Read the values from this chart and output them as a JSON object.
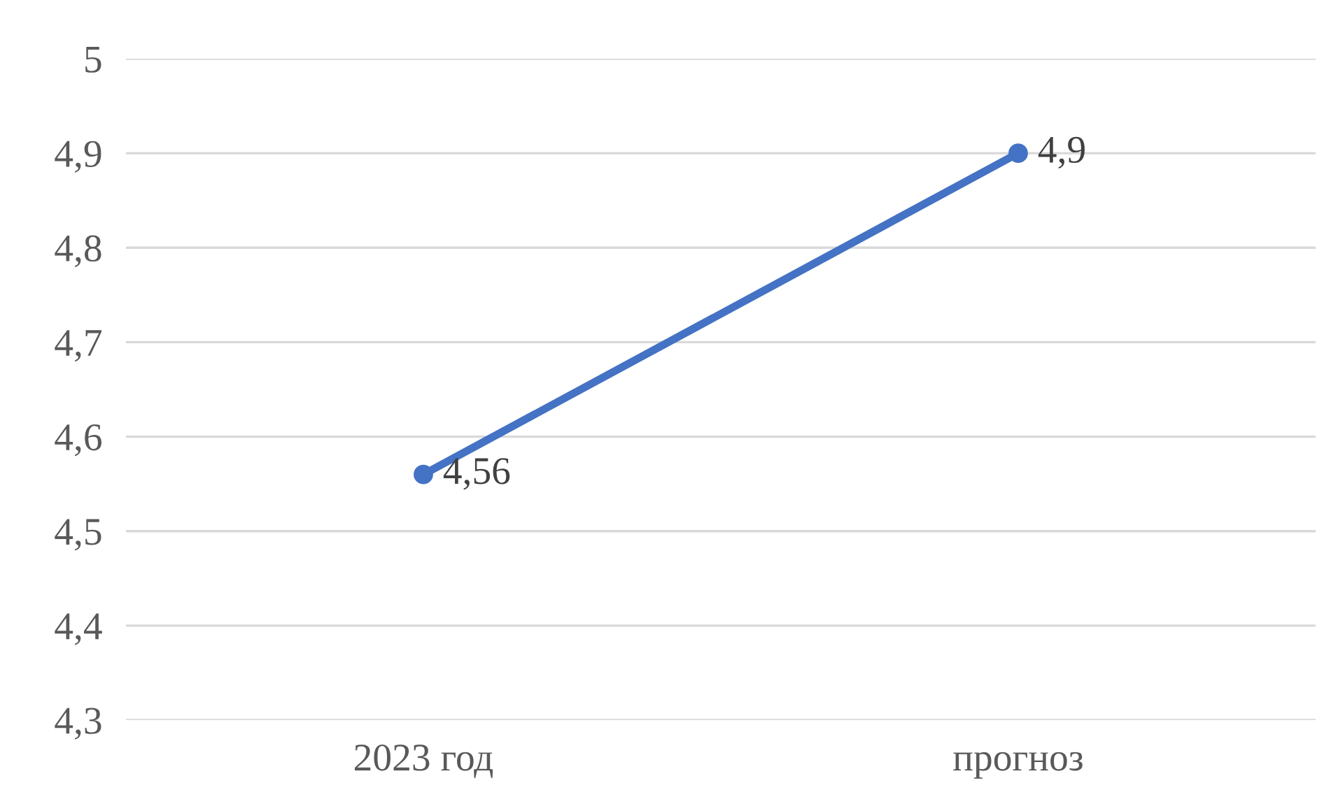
{
  "chart_data": {
    "type": "line",
    "categories": [
      "2023 год",
      "прогноз"
    ],
    "series": [
      {
        "color": "#4472c4",
        "values": [
          4.56,
          4.9
        ],
        "value_labels": [
          "4,56",
          "4,9"
        ]
      }
    ],
    "ylim": [
      4.3,
      5
    ],
    "yticks": [
      {
        "value": 4.3,
        "label": "4,3"
      },
      {
        "value": 4.4,
        "label": "4,4"
      },
      {
        "value": 4.5,
        "label": "4,5"
      },
      {
        "value": 4.6,
        "label": "4,6"
      },
      {
        "value": 4.7,
        "label": "4,7"
      },
      {
        "value": 4.8,
        "label": "4,8"
      },
      {
        "value": 4.9,
        "label": "4,9"
      },
      5
    ],
    "grid": "y",
    "marker": "circle",
    "line_style": "solid",
    "legend": false
  }
}
